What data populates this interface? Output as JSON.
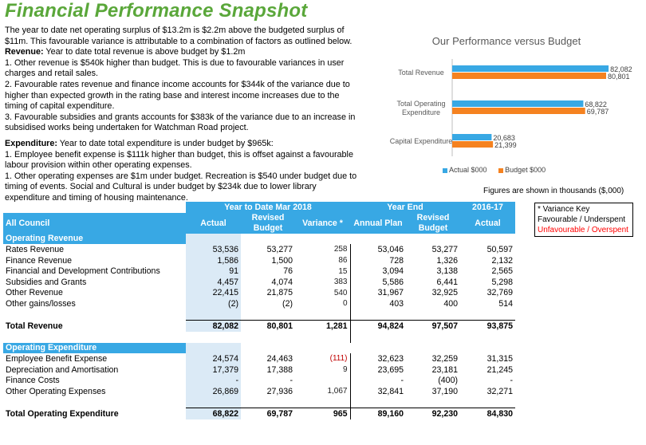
{
  "title": "Financial Performance Snapshot",
  "intro": {
    "p1": "The year to date net operating surplus of $13.2m is $2.2m above the budgeted surplus of $11m.  This favourable variance is attributable to a combination of factors as outlined below.",
    "revenue_head": "Revenue:",
    "revenue_text": " Year to date total revenue is above budget by $1.2m",
    "r1": " 1. Other revenue is $540k higher than budget. This is due to favourable variances in user charges and retail sales.",
    "r2": "2. Favourable rates revenue and finance income accounts for $344k of the variance due to higher than expected growth in the rating base and interest income increases due to the timing of capital expenditure.",
    "r3": "3. Favourable subsidies and grants accounts for $383k of the variance due to an increase in subsidised works being undertaken for Watchman Road project.",
    "expenditure_head": "Expenditure:",
    "expenditure_text": " Year to date total expenditure is under budget by $965k:",
    "e1": "1. Employee benefit expense is $111k higher than budget, this is offset against a favourable labour provision within other operating expenses.",
    "e2": "1. Other operating expenses are $1m under budget. Recreation is $540 under budget due to timing of events. Social and Cultural is under budget by $234k due to lower library expenditure and timing of housing maintenance."
  },
  "chart_data": {
    "type": "bar",
    "orientation": "horizontal",
    "title": "Our Performance versus Budget",
    "categories": [
      "Total Revenue",
      "Total Operating Expenditure",
      "Capital Expenditure"
    ],
    "series": [
      {
        "name": "Actual $000",
        "values": [
          82082,
          68822,
          20683
        ],
        "labels": [
          "82,082",
          "68,822",
          "20,683"
        ],
        "color": "#38a8e4"
      },
      {
        "name": "Budget $000",
        "values": [
          80801,
          69787,
          21399
        ],
        "labels": [
          "80,801",
          "69,787",
          "21,399"
        ],
        "color": "#f58220"
      }
    ],
    "xlim": [
      0,
      90000
    ],
    "legend": "bottom"
  },
  "figures_note": "Figures are shown in thousands ($,000)",
  "key": {
    "title": "* Variance Key",
    "favourable": "Favourable / Underspent",
    "unfavourable": "Unfavourable / Overspent"
  },
  "table": {
    "group_headers": {
      "ytd": "Year to Date Mar 2018",
      "year_end": "Year End",
      "prior": "2016-17"
    },
    "col_headers": {
      "label": "All Council",
      "actual": "Actual",
      "revised_budget": "Revised Budget",
      "variance": "Variance *",
      "annual_plan": "Annual Plan",
      "ye_revised_budget": "Revised Budget",
      "prior_actual": "Actual"
    },
    "revenue_section": "Operating Revenue",
    "revenue_rows": [
      {
        "label": "Rates Revenue",
        "actual": "53,536",
        "budget": "53,277",
        "variance": "258",
        "plan": "53,046",
        "ye_budget": "53,277",
        "prior": "50,597"
      },
      {
        "label": "Finance Revenue",
        "actual": "1,586",
        "budget": "1,500",
        "variance": "86",
        "plan": "728",
        "ye_budget": "1,326",
        "prior": "2,132"
      },
      {
        "label": "Financial and Development Contributions",
        "actual": "91",
        "budget": "76",
        "variance": "15",
        "plan": "3,094",
        "ye_budget": "3,138",
        "prior": "2,565"
      },
      {
        "label": "Subsidies and Grants",
        "actual": "4,457",
        "budget": "4,074",
        "variance": "383",
        "plan": "5,586",
        "ye_budget": "6,441",
        "prior": "5,298"
      },
      {
        "label": "Other Revenue",
        "actual": "22,415",
        "budget": "21,875",
        "variance": "540",
        "plan": "31,967",
        "ye_budget": "32,925",
        "prior": "32,769"
      },
      {
        "label": "Other gains/losses",
        "actual": "(2)",
        "budget": "(2)",
        "variance": "0",
        "plan": "403",
        "ye_budget": "400",
        "prior": "514"
      }
    ],
    "revenue_total": {
      "label": "Total Revenue",
      "actual": "82,082",
      "budget": "80,801",
      "variance": "1,281",
      "plan": "94,824",
      "ye_budget": "97,507",
      "prior": "93,875"
    },
    "expenditure_section": "Operating Expenditure",
    "expenditure_rows": [
      {
        "label": "Employee Benefit Expense",
        "actual": "24,574",
        "budget": "24,463",
        "variance": "(111)",
        "plan": "32,623",
        "ye_budget": "32,259",
        "prior": "31,315",
        "negative": true
      },
      {
        "label": "Depreciation and Amortisation",
        "actual": "17,379",
        "budget": "17,388",
        "variance": "9",
        "plan": "23,695",
        "ye_budget": "23,181",
        "prior": "21,245"
      },
      {
        "label": "Finance Costs",
        "actual": "-",
        "budget": "-",
        "variance": "",
        "plan": "-",
        "ye_budget": "(400)",
        "prior": "-"
      },
      {
        "label": "Other Operating Expenses",
        "actual": "26,869",
        "budget": "27,936",
        "variance": "1,067",
        "plan": "32,841",
        "ye_budget": "37,190",
        "prior": "32,271"
      }
    ],
    "expenditure_total": {
      "label": "Total Operating Expenditure",
      "actual": "68,822",
      "budget": "69,787",
      "variance": "965",
      "plan": "89,160",
      "ye_budget": "92,230",
      "prior": "84,830"
    }
  }
}
